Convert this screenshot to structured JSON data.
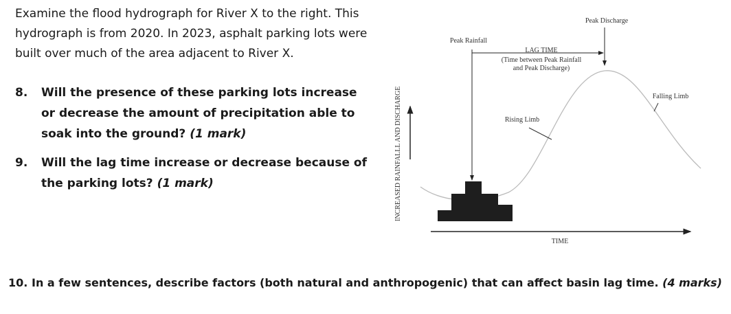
{
  "intro": "Examine the flood hydrograph for River X to the right. This hydrograph is from 2020. In 2023, asphalt parking lots were built over much of the area adjacent to River X.",
  "questions": [
    {
      "number": "8.",
      "text": "Will the presence of these parking lots increase or decrease the amount of precipitation able to soak into the ground?",
      "marks": "(1 mark)"
    },
    {
      "number": "9.",
      "text": "Will the lag time increase or decrease because of the parking lots?",
      "marks": "(1 mark)"
    },
    {
      "number": "10.",
      "text": "In a few sentences, describe factors (both natural and anthropogenic) that can affect basin lag time.",
      "marks": "(4 marks)"
    }
  ],
  "diagram": {
    "peak_discharge": "Peak Discharge",
    "peak_rainfall": "Peak Rainfall",
    "lag_time": "LAG TIME",
    "lag_time_note_1": "(Time between Peak Rainfall",
    "lag_time_note_2": "and Peak Discharge)",
    "rising_limb": "Rising Limb",
    "falling_limb": "Falling Limb",
    "y_axis": "INCREASED RAINFALLL AND DISCHARGE",
    "x_axis": "TIME"
  }
}
